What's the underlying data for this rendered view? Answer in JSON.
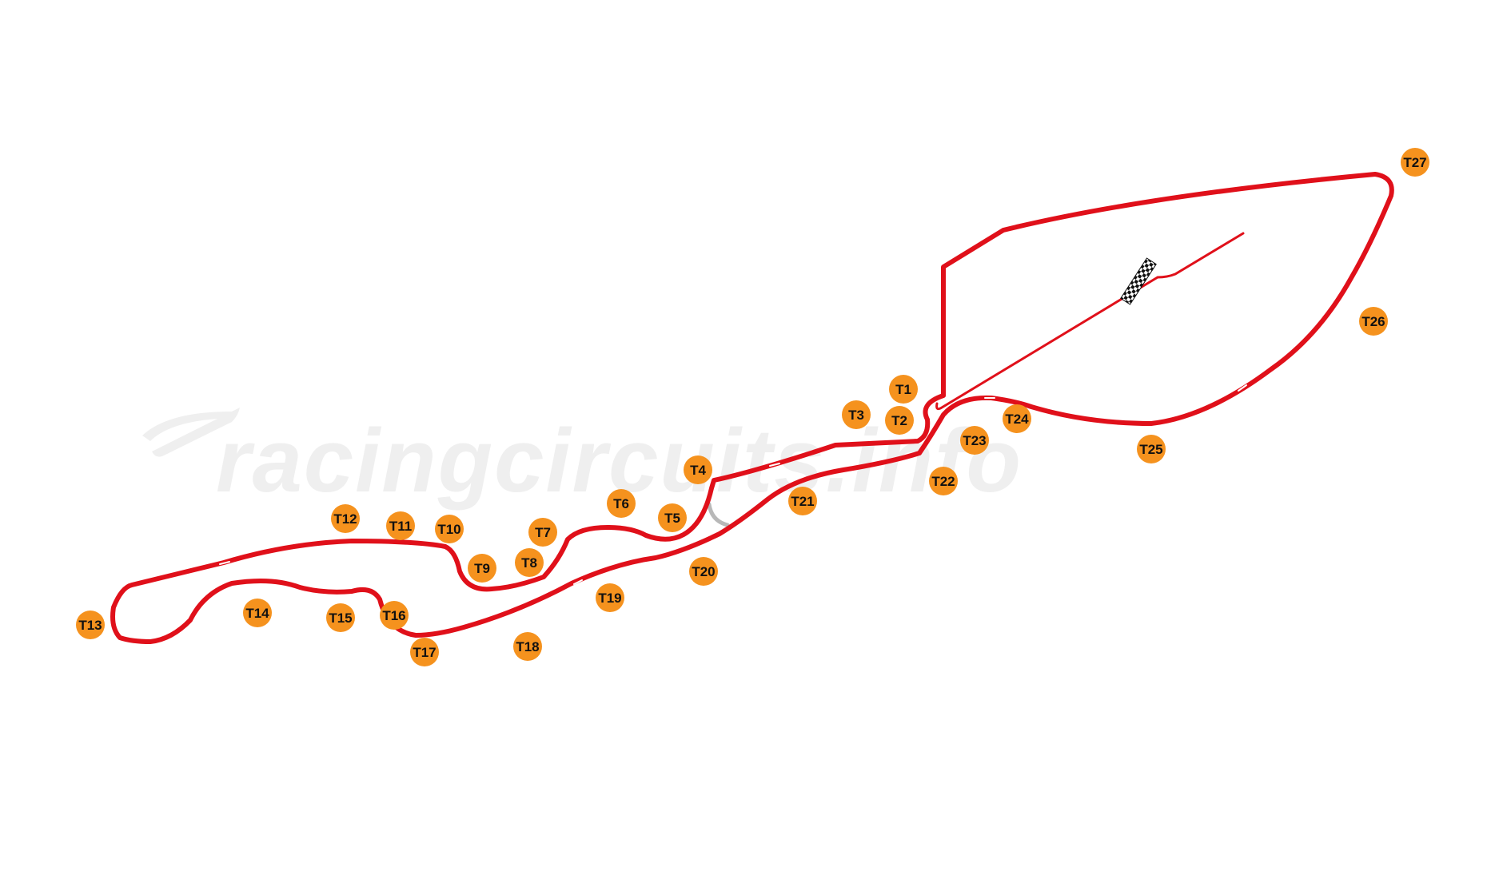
{
  "watermark": {
    "text": "racingcircuits.info"
  },
  "colors": {
    "track": "#e0101a",
    "track_edge": "#ffffff",
    "marker_fill": "#f5921e",
    "marker_text": "#111111",
    "unused_section": "#b8b8b8",
    "watermark": "#efefef"
  },
  "turns": [
    {
      "id": "T1",
      "label": "T1"
    },
    {
      "id": "T2",
      "label": "T2"
    },
    {
      "id": "T3",
      "label": "T3"
    },
    {
      "id": "T4",
      "label": "T4"
    },
    {
      "id": "T5",
      "label": "T5"
    },
    {
      "id": "T6",
      "label": "T6"
    },
    {
      "id": "T7",
      "label": "T7"
    },
    {
      "id": "T8",
      "label": "T8"
    },
    {
      "id": "T9",
      "label": "T9"
    },
    {
      "id": "T10",
      "label": "T10"
    },
    {
      "id": "T11",
      "label": "T11"
    },
    {
      "id": "T12",
      "label": "T12"
    },
    {
      "id": "T13",
      "label": "T13"
    },
    {
      "id": "T14",
      "label": "T14"
    },
    {
      "id": "T15",
      "label": "T15"
    },
    {
      "id": "T16",
      "label": "T16"
    },
    {
      "id": "T17",
      "label": "T17"
    },
    {
      "id": "T18",
      "label": "T18"
    },
    {
      "id": "T19",
      "label": "T19"
    },
    {
      "id": "T20",
      "label": "T20"
    },
    {
      "id": "T21",
      "label": "T21"
    },
    {
      "id": "T22",
      "label": "T22"
    },
    {
      "id": "T23",
      "label": "T23"
    },
    {
      "id": "T24",
      "label": "T24"
    },
    {
      "id": "T25",
      "label": "T25"
    },
    {
      "id": "T26",
      "label": "T26"
    },
    {
      "id": "T27",
      "label": "T27"
    }
  ],
  "icons": {
    "start_finish": "checkered-flag-icon",
    "watermark_logo": "racingcircuits-logo-icon"
  }
}
